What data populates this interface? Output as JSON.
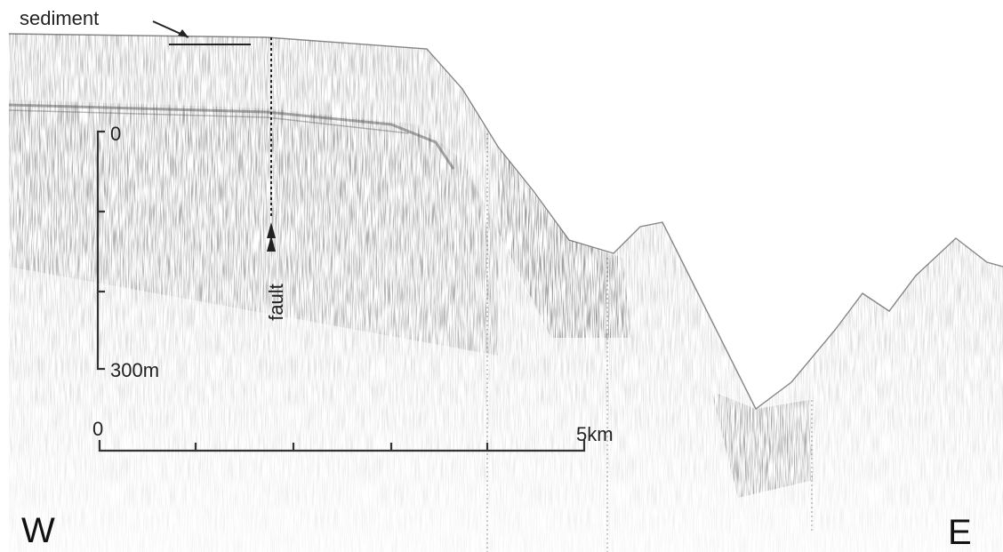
{
  "labels": {
    "sediment": "sediment",
    "depth_top": "0",
    "depth_bottom": "300m",
    "fault": "fault",
    "distance_start": "0",
    "distance_end": "5km",
    "west": "W",
    "east": "E"
  }
}
